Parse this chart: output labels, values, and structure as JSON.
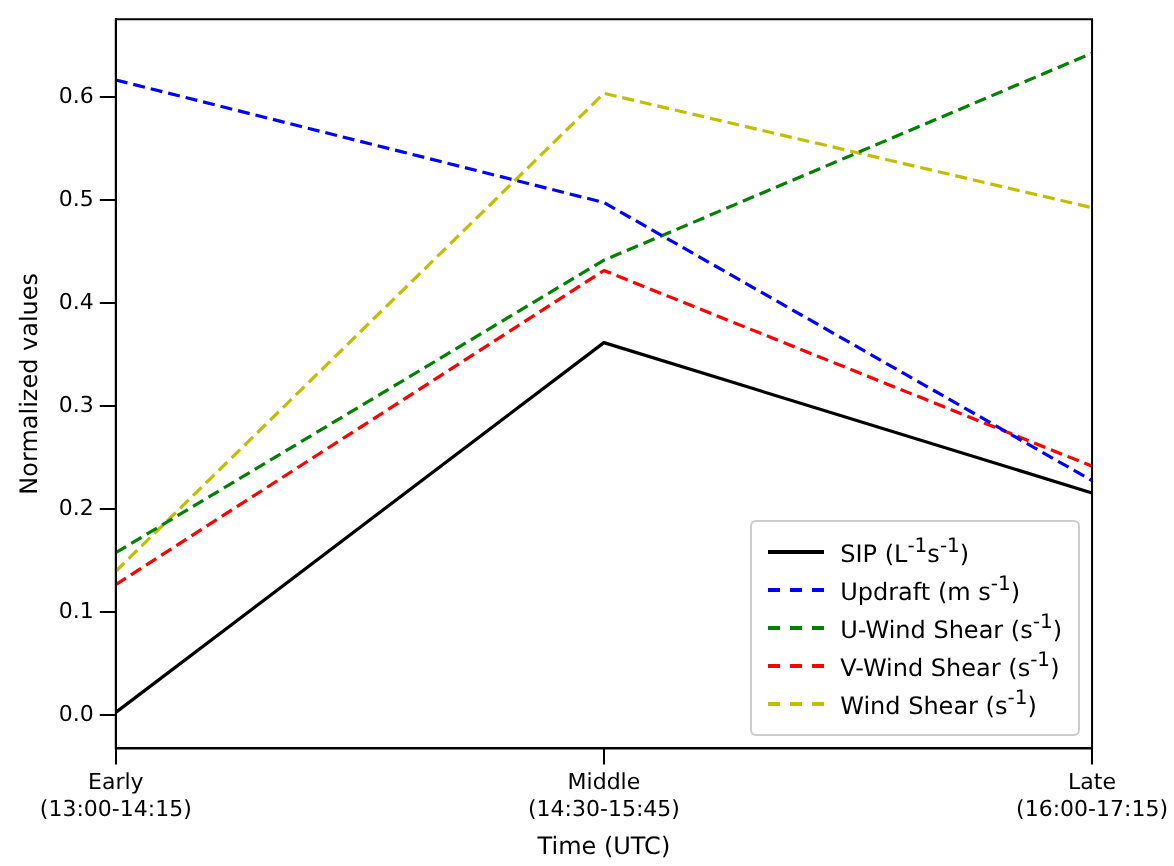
{
  "chart_data": {
    "type": "line",
    "xlabel": "Time (UTC)",
    "ylabel": "Normalized values",
    "categories": [
      "Early\n(13:00-14:15)",
      "Middle\n(14:30-15:45)",
      "Late\n(16:00-17:15)"
    ],
    "series": [
      {
        "name": "SIP (L$^{-1}$s$^{-1}$)",
        "color": "#000000",
        "line_style": "solid",
        "values": [
          0.003,
          0.362,
          0.216
        ]
      },
      {
        "name": "Updraft (m s$^{-1}$)",
        "color": "#0000ff",
        "line_style": "dashed",
        "values": [
          0.617,
          0.498,
          0.228
        ]
      },
      {
        "name": "U-Wind Shear (s$^{-1}$)",
        "color": "#008000",
        "line_style": "dashed",
        "values": [
          0.158,
          0.442,
          0.643
        ]
      },
      {
        "name": "V-Wind Shear (s$^{-1}$)",
        "color": "#ff0000",
        "line_style": "dashed",
        "values": [
          0.127,
          0.432,
          0.242
        ]
      },
      {
        "name": "Wind Shear (s$^{-1}$)",
        "color": "#bfbf00",
        "line_style": "dashed",
        "values": [
          0.14,
          0.604,
          0.493
        ]
      }
    ],
    "ylim": [
      -0.032,
      0.676
    ],
    "yticks": [
      {
        "value": 0,
        "label": "0.0"
      },
      {
        "value": 0.1,
        "label": "0.1"
      },
      {
        "value": 0.2,
        "label": "0.2"
      },
      {
        "value": 0.3,
        "label": "0.3"
      },
      {
        "value": 0.4,
        "label": "0.4"
      },
      {
        "value": 0.5,
        "label": "0.5"
      },
      {
        "value": 0.6,
        "label": "0.6"
      }
    ],
    "grid": false,
    "legend": "bottom right",
    "marker": "none"
  }
}
